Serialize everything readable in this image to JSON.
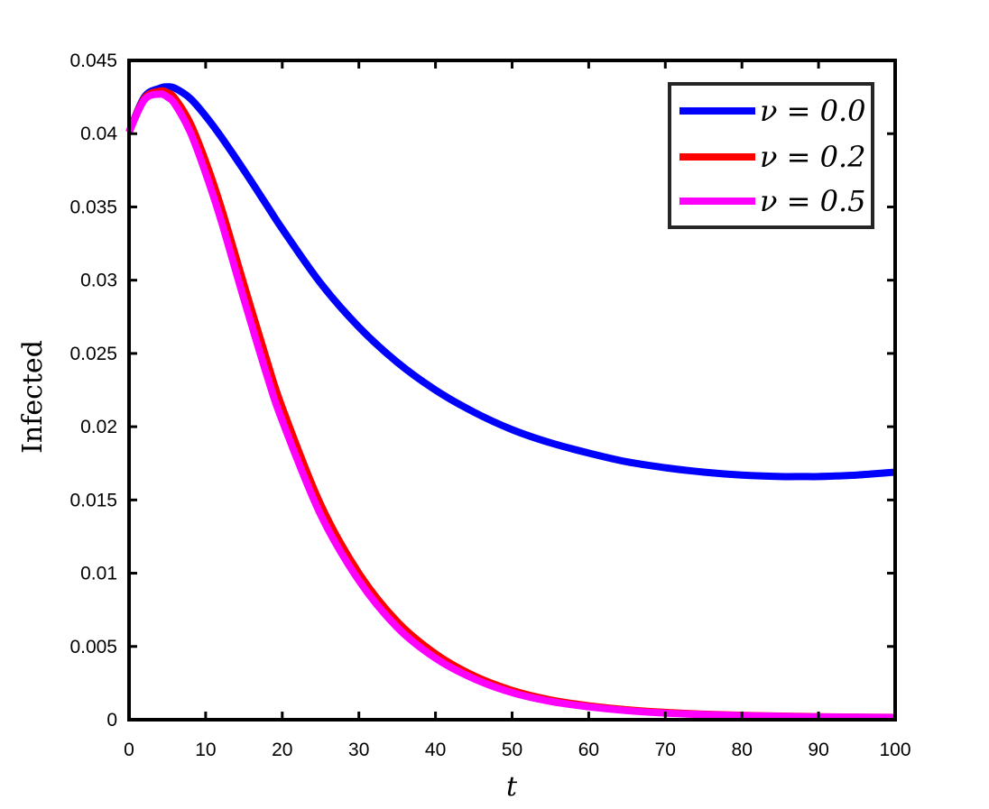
{
  "chart_data": {
    "type": "line",
    "title": "",
    "xlabel": "t",
    "ylabel": "Infected",
    "xlim": [
      0,
      100
    ],
    "ylim": [
      0,
      0.045
    ],
    "xticks": [
      0,
      10,
      20,
      30,
      40,
      50,
      60,
      70,
      80,
      90,
      100
    ],
    "yticks": [
      0,
      0.005,
      0.01,
      0.015,
      0.02,
      0.025,
      0.03,
      0.035,
      0.04,
      0.045
    ],
    "xtick_labels": [
      "0",
      "10",
      "20",
      "30",
      "40",
      "50",
      "60",
      "70",
      "80",
      "90",
      "100"
    ],
    "ytick_labels": [
      "0",
      "0.005",
      "0.01",
      "0.015",
      "0.02",
      "0.025",
      "0.03",
      "0.035",
      "0.04",
      "0.045"
    ],
    "grid": false,
    "legend_position": "top-right",
    "x": [
      0,
      2,
      4,
      5,
      6,
      8,
      10,
      12,
      15,
      18,
      20,
      25,
      30,
      35,
      40,
      45,
      50,
      55,
      60,
      65,
      70,
      75,
      80,
      85,
      88,
      90,
      95,
      100
    ],
    "series": [
      {
        "name": "ν = 0.0",
        "color": "#0000ff",
        "values": [
          0.0401,
          0.0425,
          0.0431,
          0.0432,
          0.0431,
          0.0424,
          0.0412,
          0.0398,
          0.0375,
          0.0351,
          0.0335,
          0.0298,
          0.0268,
          0.0244,
          0.0225,
          0.021,
          0.0198,
          0.0189,
          0.0182,
          0.0176,
          0.0172,
          0.0169,
          0.0167,
          0.0166,
          0.0166,
          0.0166,
          0.0167,
          0.0169
        ]
      },
      {
        "name": "ν = 0.2",
        "color": "#ff0000",
        "values": [
          0.0401,
          0.0424,
          0.0429,
          0.0428,
          0.0424,
          0.0407,
          0.0381,
          0.035,
          0.0297,
          0.0245,
          0.0213,
          0.0147,
          0.01,
          0.0067,
          0.0045,
          0.003,
          0.002,
          0.00135,
          0.00095,
          0.00068,
          0.0005,
          0.00038,
          0.0003,
          0.00025,
          0.00022,
          0.0002,
          0.00018,
          0.00016
        ]
      },
      {
        "name": "ν = 0.5",
        "color": "#ff00ff",
        "values": [
          0.0401,
          0.0423,
          0.0427,
          0.0425,
          0.042,
          0.0401,
          0.0373,
          0.0341,
          0.0287,
          0.0235,
          0.0204,
          0.014,
          0.0095,
          0.0063,
          0.0042,
          0.0028,
          0.00185,
          0.00125,
          0.00088,
          0.00062,
          0.00045,
          0.00035,
          0.00028,
          0.00023,
          0.0002,
          0.00019,
          0.00017,
          0.00015
        ]
      }
    ]
  }
}
